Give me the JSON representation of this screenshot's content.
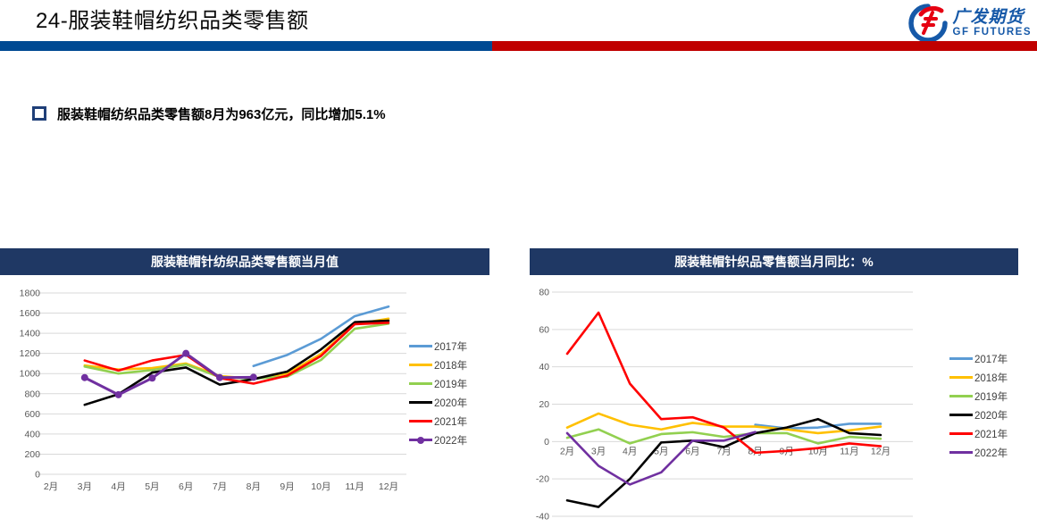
{
  "page": {
    "title": "24-服装鞋帽纺织品类零售额",
    "bullet_text": "服装鞋帽纺织品类零售额8月为963亿元，同比增加5.1%",
    "logo": {
      "cn": "广发期货",
      "en": "GF FUTURES"
    },
    "colors": {
      "divider_blue": "#004A93",
      "divider_red": "#C00000",
      "panel_header_bg": "#1F3864",
      "logo_blue": "#1659A8",
      "logo_red": "#E60012",
      "gridline": "#D9D9D9",
      "axis_text": "#595959"
    }
  },
  "chart_data": [
    {
      "type": "line",
      "title": "服装鞋帽针纺织品类零售额当月值",
      "categories": [
        "2月",
        "3月",
        "4月",
        "5月",
        "6月",
        "7月",
        "8月",
        "9月",
        "10月",
        "11月",
        "12月"
      ],
      "ylim": [
        0,
        1800
      ],
      "ystep": 200,
      "grid": true,
      "legend_position": "right",
      "series": [
        {
          "name": "2017年",
          "color": "#5B9BD5",
          "marker": false,
          "values": [
            null,
            null,
            null,
            null,
            null,
            null,
            1075,
            1185,
            1345,
            1570,
            1665
          ]
        },
        {
          "name": "2018年",
          "color": "#FFC000",
          "marker": false,
          "values": [
            null,
            1080,
            1040,
            1055,
            1100,
            975,
            950,
            1000,
            1195,
            1490,
            1545
          ]
        },
        {
          "name": "2019年",
          "color": "#92D050",
          "marker": false,
          "values": [
            null,
            1070,
            1000,
            1035,
            1090,
            965,
            950,
            970,
            1135,
            1445,
            1495
          ]
        },
        {
          "name": "2020年",
          "color": "#000000",
          "marker": false,
          "values": [
            null,
            690,
            795,
            1010,
            1060,
            890,
            945,
            1020,
            1240,
            1510,
            1525
          ]
        },
        {
          "name": "2021年",
          "color": "#FF0000",
          "marker": false,
          "values": [
            null,
            1130,
            1030,
            1130,
            1185,
            955,
            900,
            980,
            1175,
            1490,
            1505
          ]
        },
        {
          "name": "2022年",
          "color": "#7030A0",
          "marker": true,
          "values": [
            null,
            960,
            790,
            955,
            1200,
            960,
            963,
            null,
            null,
            null,
            null
          ]
        }
      ]
    },
    {
      "type": "line",
      "title": "服装鞋帽针织品零售额当月同比：%",
      "categories": [
        "2月",
        "3月",
        "4月",
        "5月",
        "6月",
        "7月",
        "8月",
        "9月",
        "10月",
        "11月",
        "12月"
      ],
      "ylim": [
        -40,
        80
      ],
      "ystep": 20,
      "grid": true,
      "legend_position": "right",
      "series": [
        {
          "name": "2017年",
          "color": "#5B9BD5",
          "marker": false,
          "values": [
            null,
            null,
            null,
            null,
            null,
            null,
            9,
            7,
            7.5,
            9.5,
            9.5
          ]
        },
        {
          "name": "2018年",
          "color": "#FFC000",
          "marker": false,
          "values": [
            7.5,
            15,
            9,
            6.5,
            10,
            8,
            8,
            6.5,
            4.5,
            6,
            8
          ]
        },
        {
          "name": "2019年",
          "color": "#92D050",
          "marker": false,
          "values": [
            2,
            6.5,
            -1,
            4,
            5,
            2.5,
            4.5,
            4.5,
            -1,
            2.5,
            1.5
          ]
        },
        {
          "name": "2020年",
          "color": "#000000",
          "marker": false,
          "values": [
            -31.5,
            -35,
            -20,
            -0.5,
            0.5,
            -3,
            4.5,
            7.5,
            12,
            4.5,
            3.5
          ]
        },
        {
          "name": "2021年",
          "color": "#FF0000",
          "marker": false,
          "values": [
            47,
            69,
            31,
            12,
            13,
            7.5,
            -6,
            -5,
            -3.5,
            -1,
            -2.5
          ]
        },
        {
          "name": "2022年",
          "color": "#7030A0",
          "marker": false,
          "values": [
            4.5,
            -13,
            -23,
            -16.5,
            0.5,
            0.5,
            5.1,
            null,
            null,
            null,
            null
          ]
        }
      ]
    }
  ]
}
